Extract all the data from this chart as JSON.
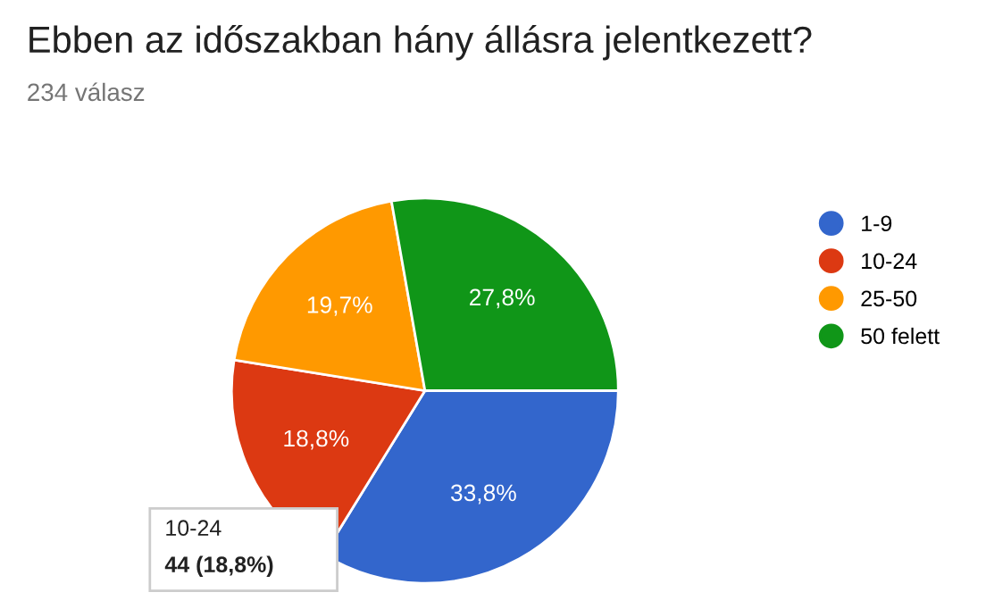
{
  "chart_data": {
    "type": "pie",
    "title": "Ebben az időszakban hány állásra jelentkezett?",
    "subtitle": "234 válasz",
    "categories": [
      "1-9",
      "10-24",
      "25-50",
      "50 felett"
    ],
    "values": [
      33.8,
      18.8,
      19.7,
      27.8
    ],
    "value_labels": [
      "33,8%",
      "18,8%",
      "19,7%",
      "27,8%"
    ],
    "colors": [
      "#3366cc",
      "#dc3912",
      "#ff9900",
      "#109618"
    ],
    "legend": "right",
    "annotations": [
      "10-24",
      "44 (18,8%)"
    ]
  }
}
